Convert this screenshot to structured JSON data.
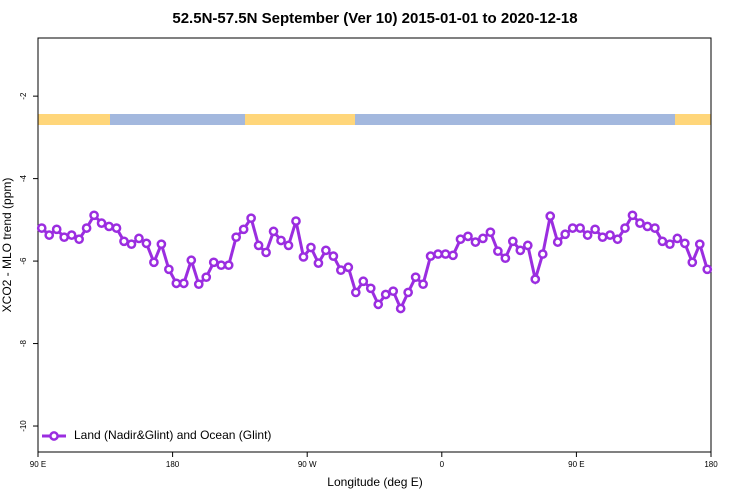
{
  "chart_data": {
    "type": "line",
    "title": "52.5N-57.5N September (Ver 10)   2015-01-01 to 2020-12-18",
    "x_label": "Longitude (deg E)",
    "y_label": "XCO2 - MLO trend (ppm)",
    "x": [
      92.5,
      97.5,
      102.5,
      107.5,
      112.5,
      117.5,
      122.5,
      127.5,
      132.5,
      137.5,
      142.5,
      147.5,
      152.5,
      157.5,
      162.5,
      167.5,
      172.5,
      177.5,
      182.5,
      187.5,
      192.5,
      197.5,
      202.5,
      207.5,
      212.5,
      217.5,
      222.5,
      227.5,
      232.5,
      237.5,
      242.5,
      247.5,
      252.5,
      257.5,
      262.5,
      267.5,
      272.5,
      277.5,
      282.5,
      287.5,
      292.5,
      297.5,
      302.5,
      307.5,
      312.5,
      317.5,
      322.5,
      327.5,
      332.5,
      337.5,
      342.5,
      347.5,
      352.5,
      357.5,
      362.5,
      367.5,
      372.5,
      377.5,
      382.5,
      387.5,
      392.5,
      397.5,
      402.5,
      407.5,
      412.5,
      417.5,
      422.5,
      427.5,
      432.5,
      437.5,
      442.5,
      447.5,
      452.5,
      457.5,
      462.5,
      467.5,
      472.5,
      477.5,
      482.5,
      487.5,
      492.5,
      497.5,
      502.5,
      507.5,
      512.5,
      517.5,
      522.5,
      527.5,
      532.5,
      537.5
    ],
    "series": [
      {
        "name": "Land (Nadir&Glint) and Ocean (Glint)",
        "color": "#9b2de0",
        "values": [
          -5.2,
          -5.37,
          -5.23,
          -5.42,
          -5.37,
          -5.47,
          -5.2,
          -4.89,
          -5.08,
          -5.16,
          -5.2,
          -5.52,
          -5.59,
          -5.45,
          -5.57,
          -6.03,
          -5.59,
          -6.2,
          -6.54,
          -6.54,
          -5.98,
          -6.56,
          -6.39,
          -6.03,
          -6.1,
          -6.1,
          -5.42,
          -5.23,
          -4.96,
          -5.62,
          -5.79,
          -5.28,
          -5.5,
          -5.62,
          -5.03,
          -5.9,
          -5.67,
          -6.05,
          -5.74,
          -5.88,
          -6.22,
          -6.15,
          -6.76,
          -6.49,
          -6.66,
          -7.05,
          -6.81,
          -6.73,
          -7.15,
          -6.76,
          -6.39,
          -6.56,
          -5.88,
          -5.83,
          -5.83,
          -5.86,
          -5.47,
          -5.4,
          -5.54,
          -5.45,
          -5.3,
          -5.76,
          -5.93,
          -5.52,
          -5.74,
          -5.62,
          -6.44,
          -5.83,
          -4.91,
          -5.54,
          -5.35,
          -5.2,
          -5.2,
          -5.37,
          -5.23,
          -5.42,
          -5.37,
          -5.47,
          -5.2,
          -4.89,
          -5.08,
          -5.16,
          -5.2,
          -5.52,
          -5.59,
          -5.45,
          -5.57,
          -6.03,
          -5.59,
          -6.2
        ]
      }
    ],
    "xlim": [
      90,
      540
    ],
    "ylim": [
      -10.63,
      -0.59
    ],
    "xticks": [
      {
        "value": 90,
        "label": "90 E"
      },
      180,
      {
        "value": 270,
        "label": "90 W"
      },
      {
        "value": 360,
        "label": "0"
      },
      {
        "value": 450,
        "label": "90 E"
      },
      {
        "value": 540,
        "label": "180"
      }
    ],
    "yticks": [
      -10,
      -8,
      -6,
      -4,
      -2
    ],
    "legend": "bottom-left"
  }
}
